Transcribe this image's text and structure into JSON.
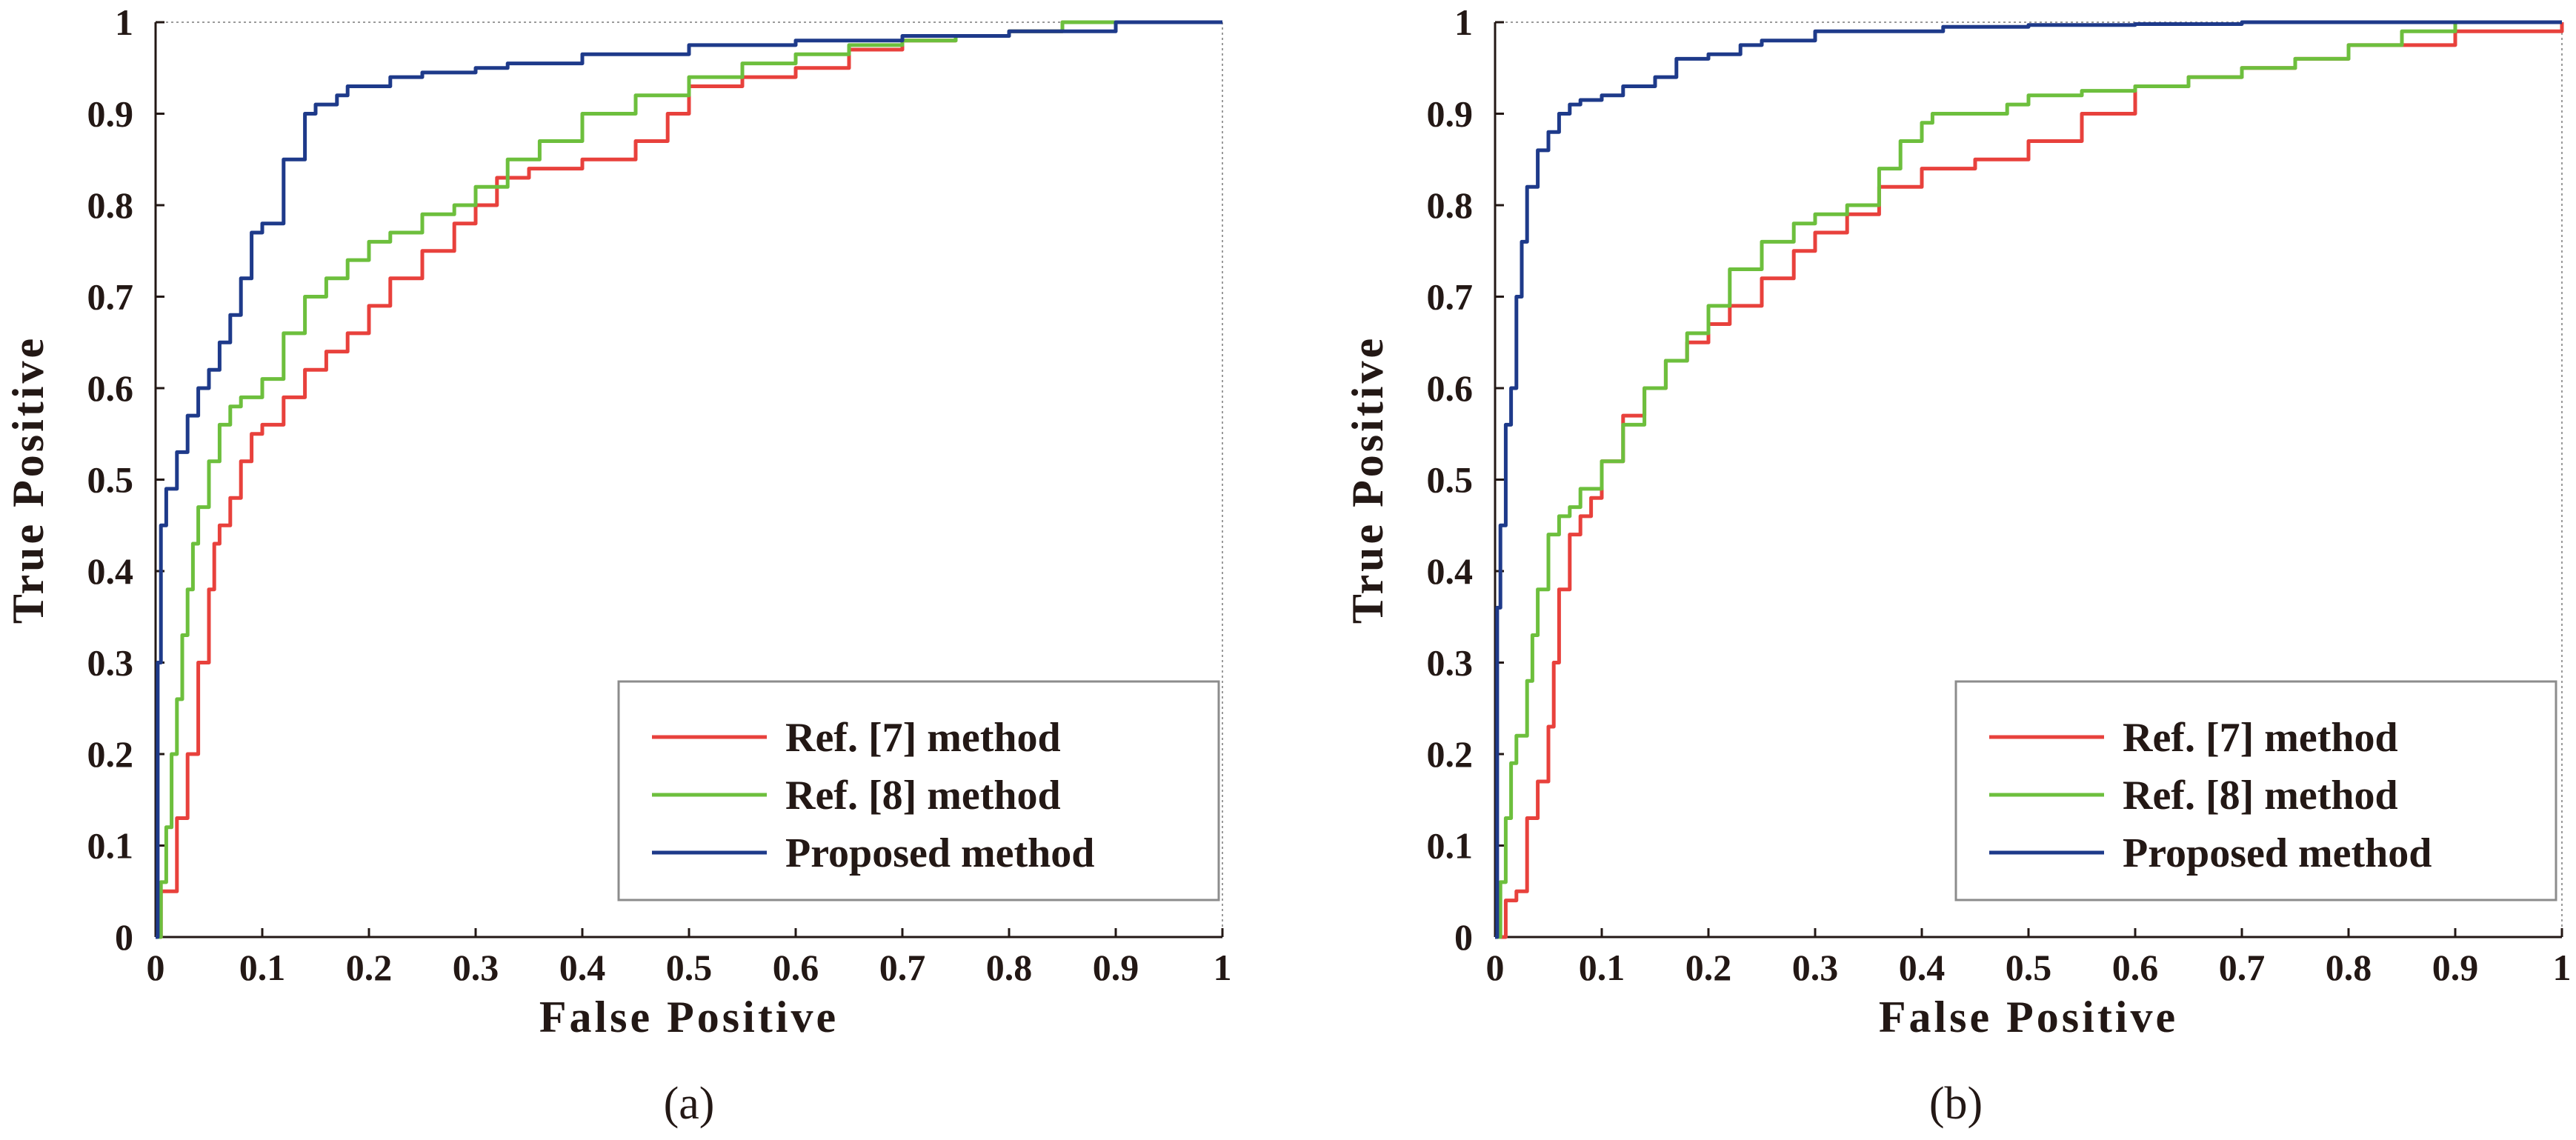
{
  "chart_data": [
    {
      "type": "line",
      "panel_label": "(a)",
      "xlabel": "False Positive",
      "ylabel": "True Positive",
      "xlim": [
        0,
        1
      ],
      "ylim": [
        0,
        1
      ],
      "x_ticks": [
        "0",
        "0.1",
        "0.2",
        "0.3",
        "0.4",
        "0.5",
        "0.6",
        "0.7",
        "0.8",
        "0.9",
        "1"
      ],
      "y_ticks": [
        "0",
        "0.1",
        "0.2",
        "0.3",
        "0.4",
        "0.5",
        "0.6",
        "0.7",
        "0.8",
        "0.9",
        "1"
      ],
      "legend": {
        "position": "bottom-right"
      },
      "series": [
        {
          "name": "Ref. [7] method",
          "color": "#e8413c",
          "x": [
            0,
            0.005,
            0.01,
            0.02,
            0.025,
            0.03,
            0.04,
            0.045,
            0.05,
            0.055,
            0.06,
            0.07,
            0.08,
            0.09,
            0.1,
            0.12,
            0.14,
            0.16,
            0.18,
            0.2,
            0.22,
            0.25,
            0.28,
            0.3,
            0.32,
            0.35,
            0.4,
            0.45,
            0.48,
            0.5,
            0.55,
            0.6,
            0.65,
            0.7,
            0.75,
            0.8,
            0.85,
            0.9,
            1.0
          ],
          "y": [
            0,
            0.05,
            0.05,
            0.13,
            0.13,
            0.2,
            0.3,
            0.3,
            0.38,
            0.43,
            0.45,
            0.48,
            0.52,
            0.55,
            0.56,
            0.59,
            0.62,
            0.64,
            0.66,
            0.69,
            0.72,
            0.75,
            0.78,
            0.8,
            0.83,
            0.84,
            0.85,
            0.87,
            0.9,
            0.93,
            0.94,
            0.95,
            0.97,
            0.98,
            0.985,
            0.99,
            1.0,
            1.0,
            1.0
          ]
        },
        {
          "name": "Ref. [8] method",
          "color": "#6dbf3d",
          "x": [
            0,
            0.005,
            0.01,
            0.015,
            0.02,
            0.025,
            0.03,
            0.035,
            0.04,
            0.05,
            0.06,
            0.07,
            0.08,
            0.1,
            0.12,
            0.14,
            0.16,
            0.18,
            0.2,
            0.22,
            0.25,
            0.28,
            0.3,
            0.33,
            0.36,
            0.4,
            0.45,
            0.5,
            0.55,
            0.6,
            0.65,
            0.7,
            0.75,
            0.8,
            0.85,
            0.9,
            1.0
          ],
          "y": [
            0,
            0.06,
            0.12,
            0.2,
            0.26,
            0.33,
            0.38,
            0.43,
            0.47,
            0.52,
            0.56,
            0.58,
            0.59,
            0.61,
            0.66,
            0.7,
            0.72,
            0.74,
            0.76,
            0.77,
            0.79,
            0.8,
            0.82,
            0.85,
            0.87,
            0.9,
            0.92,
            0.94,
            0.955,
            0.965,
            0.975,
            0.98,
            0.985,
            0.99,
            1.0,
            1.0,
            1.0
          ]
        },
        {
          "name": "Proposed method",
          "color": "#1e3a8a",
          "x": [
            0,
            0.002,
            0.005,
            0.01,
            0.02,
            0.03,
            0.04,
            0.05,
            0.06,
            0.07,
            0.08,
            0.09,
            0.1,
            0.12,
            0.14,
            0.15,
            0.17,
            0.18,
            0.2,
            0.22,
            0.25,
            0.3,
            0.33,
            0.4,
            0.5,
            0.6,
            0.7,
            0.8,
            0.9,
            1.0
          ],
          "y": [
            0,
            0.3,
            0.45,
            0.49,
            0.53,
            0.57,
            0.6,
            0.62,
            0.65,
            0.68,
            0.72,
            0.77,
            0.78,
            0.85,
            0.9,
            0.91,
            0.92,
            0.93,
            0.93,
            0.94,
            0.945,
            0.95,
            0.955,
            0.965,
            0.975,
            0.98,
            0.985,
            0.99,
            1.0,
            1.0
          ]
        }
      ]
    },
    {
      "type": "line",
      "panel_label": "(b)",
      "xlabel": "False Positive",
      "ylabel": "True Positive",
      "xlim": [
        0,
        1
      ],
      "ylim": [
        0,
        1
      ],
      "x_ticks": [
        "0",
        "0.1",
        "0.2",
        "0.3",
        "0.4",
        "0.5",
        "0.6",
        "0.7",
        "0.8",
        "0.9",
        "1"
      ],
      "y_ticks": [
        "0",
        "0.1",
        "0.2",
        "0.3",
        "0.4",
        "0.5",
        "0.6",
        "0.7",
        "0.8",
        "0.9",
        "1"
      ],
      "legend": {
        "position": "bottom-right"
      },
      "series": [
        {
          "name": "Ref. [7] method",
          "color": "#e8413c",
          "x": [
            0,
            0.01,
            0.02,
            0.03,
            0.04,
            0.05,
            0.055,
            0.06,
            0.07,
            0.08,
            0.09,
            0.1,
            0.12,
            0.14,
            0.16,
            0.18,
            0.2,
            0.22,
            0.25,
            0.28,
            0.3,
            0.33,
            0.36,
            0.4,
            0.45,
            0.5,
            0.55,
            0.6,
            0.65,
            0.7,
            0.75,
            0.8,
            0.9,
            1.0
          ],
          "y": [
            0,
            0.04,
            0.05,
            0.13,
            0.17,
            0.23,
            0.3,
            0.38,
            0.44,
            0.46,
            0.48,
            0.52,
            0.57,
            0.6,
            0.63,
            0.65,
            0.67,
            0.69,
            0.72,
            0.75,
            0.77,
            0.79,
            0.82,
            0.84,
            0.85,
            0.87,
            0.9,
            0.93,
            0.94,
            0.95,
            0.96,
            0.975,
            0.99,
            1.0
          ]
        },
        {
          "name": "Ref. [8] method",
          "color": "#6dbf3d",
          "x": [
            0,
            0.005,
            0.01,
            0.015,
            0.02,
            0.03,
            0.035,
            0.04,
            0.05,
            0.06,
            0.07,
            0.08,
            0.1,
            0.12,
            0.14,
            0.16,
            0.18,
            0.2,
            0.22,
            0.25,
            0.28,
            0.3,
            0.33,
            0.36,
            0.38,
            0.4,
            0.41,
            0.45,
            0.48,
            0.5,
            0.55,
            0.6,
            0.65,
            0.7,
            0.75,
            0.8,
            0.85,
            0.9,
            1.0
          ],
          "y": [
            0,
            0.06,
            0.13,
            0.19,
            0.22,
            0.28,
            0.33,
            0.38,
            0.44,
            0.46,
            0.47,
            0.49,
            0.52,
            0.56,
            0.6,
            0.63,
            0.66,
            0.69,
            0.73,
            0.76,
            0.78,
            0.79,
            0.8,
            0.84,
            0.87,
            0.89,
            0.9,
            0.9,
            0.91,
            0.92,
            0.925,
            0.93,
            0.94,
            0.95,
            0.96,
            0.975,
            0.99,
            1.0,
            1.0
          ]
        },
        {
          "name": "Proposed method",
          "color": "#1e3a8a",
          "x": [
            0,
            0.002,
            0.005,
            0.01,
            0.015,
            0.02,
            0.025,
            0.03,
            0.04,
            0.05,
            0.06,
            0.07,
            0.08,
            0.1,
            0.12,
            0.15,
            0.17,
            0.2,
            0.23,
            0.25,
            0.3,
            0.35,
            0.42,
            0.5,
            0.6,
            0.7,
            0.8,
            0.9,
            1.0
          ],
          "y": [
            0,
            0.36,
            0.45,
            0.56,
            0.6,
            0.7,
            0.76,
            0.82,
            0.86,
            0.88,
            0.9,
            0.91,
            0.915,
            0.92,
            0.93,
            0.94,
            0.96,
            0.965,
            0.975,
            0.98,
            0.99,
            0.99,
            0.995,
            0.997,
            0.998,
            1.0,
            1.0,
            1.0,
            1.0
          ]
        }
      ]
    }
  ]
}
